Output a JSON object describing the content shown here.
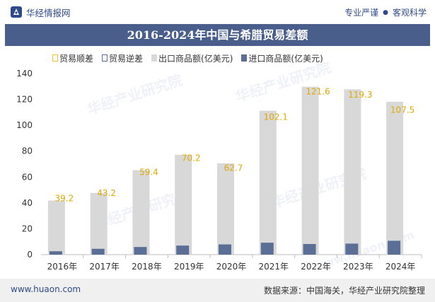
{
  "header": {
    "brand": "华经情报网",
    "tagline_left": "专业严谨",
    "tagline_right": "客观科学"
  },
  "watermark": {
    "text": "华经产业研究院",
    "url": "www.huaon.com"
  },
  "footer": {
    "url": "www.huaon.com",
    "source": "数据来源：中国海关，华经产业研究院整理"
  },
  "colors": {
    "title_bg": "#4a5e8c",
    "export": "#d8d8d8",
    "import": "#5b6e96",
    "surplus_outline": "#f0c030",
    "deficit_outline": "#5b6e96"
  },
  "chart_data": {
    "type": "bar",
    "title": "2016-2024年中国与希腊贸易差额",
    "categories": [
      "2016年",
      "2017年",
      "2018年",
      "2019年",
      "2020年",
      "2021年",
      "2022年",
      "2023年",
      "2024年"
    ],
    "series": [
      {
        "name": "贸易顺差",
        "values": [
          39.2,
          43.2,
          59.4,
          70.2,
          62.7,
          102.1,
          121.6,
          119.3,
          107.5
        ]
      },
      {
        "name": "贸易逆差",
        "values": [
          0,
          0,
          0,
          0,
          0,
          0,
          0,
          0,
          0
        ]
      },
      {
        "name": "出口商品额(亿美元)",
        "values": [
          41.8,
          47.7,
          65.3,
          77.2,
          70.6,
          111.3,
          129.8,
          127.8,
          118.2
        ]
      },
      {
        "name": "进口商品额(亿美元)",
        "values": [
          2.6,
          4.5,
          5.9,
          7.0,
          7.9,
          9.2,
          8.2,
          8.5,
          10.7
        ]
      }
    ],
    "ylim": [
      0,
      140
    ],
    "yticks": [
      0,
      20,
      40,
      60,
      80,
      100,
      120,
      140
    ],
    "xlabel": "",
    "ylabel": "",
    "grid": false,
    "legend_position": "top"
  }
}
